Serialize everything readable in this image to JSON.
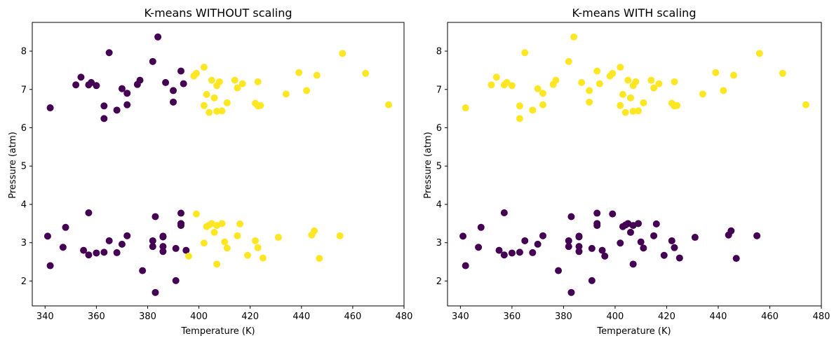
{
  "colors": {
    "cluster_0": "#440154",
    "cluster_1": "#fde725",
    "frame": "#000000"
  },
  "chart_data": [
    {
      "type": "scatter",
      "title": "K-means WITHOUT scaling",
      "xlabel": "Temperature (K)",
      "ylabel": "Pressure (atm)",
      "xlim": [
        335,
        480
      ],
      "ylim": [
        1.35,
        8.75
      ],
      "xticks": [
        340,
        360,
        380,
        400,
        420,
        440,
        460,
        480
      ],
      "yticks": [
        2,
        3,
        4,
        5,
        6,
        7,
        8
      ],
      "grid": false,
      "series": [
        {
          "color": "#440154",
          "points": [
            [
              342,
              6.52
            ],
            [
              352,
              7.12
            ],
            [
              354,
              7.32
            ],
            [
              357,
              7.12
            ],
            [
              358,
              7.18
            ],
            [
              360,
              7.1
            ],
            [
              363,
              6.57
            ],
            [
              363,
              6.24
            ],
            [
              365,
              7.96
            ],
            [
              368,
              6.46
            ],
            [
              370,
              7.02
            ],
            [
              372,
              6.6
            ],
            [
              372,
              6.9
            ],
            [
              376,
              7.13
            ],
            [
              377,
              7.24
            ],
            [
              382,
              7.73
            ],
            [
              384,
              8.37
            ],
            [
              387,
              7.18
            ],
            [
              390,
              6.67
            ],
            [
              390,
              6.97
            ],
            [
              393,
              7.48
            ],
            [
              394,
              7.15
            ],
            [
              341,
              3.17
            ],
            [
              342,
              2.4
            ],
            [
              347,
              2.88
            ],
            [
              348,
              3.4
            ],
            [
              355,
              2.8
            ],
            [
              357,
              3.78
            ],
            [
              357,
              2.68
            ],
            [
              360,
              2.73
            ],
            [
              363,
              2.75
            ],
            [
              365,
              3.05
            ],
            [
              368,
              2.74
            ],
            [
              370,
              2.96
            ],
            [
              372,
              3.18
            ],
            [
              378,
              2.27
            ],
            [
              382,
              3.05
            ],
            [
              382,
              2.9
            ],
            [
              383,
              3.68
            ],
            [
              383,
              1.7
            ],
            [
              386,
              3.15
            ],
            [
              386,
              3.17
            ],
            [
              386,
              2.9
            ],
            [
              386,
              2.77
            ],
            [
              391,
              2.85
            ],
            [
              391,
              2.01
            ],
            [
              393,
              3.5
            ],
            [
              393,
              3.45
            ],
            [
              393,
              3.77
            ],
            [
              395,
              2.8
            ]
          ]
        },
        {
          "color": "#fde725",
          "points": [
            [
              398,
              7.35
            ],
            [
              399,
              7.42
            ],
            [
              402,
              7.58
            ],
            [
              402,
              6.58
            ],
            [
              403,
              6.87
            ],
            [
              404,
              6.4
            ],
            [
              405,
              7.24
            ],
            [
              406,
              6.78
            ],
            [
              407,
              6.43
            ],
            [
              407,
              7.1
            ],
            [
              408,
              7.2
            ],
            [
              409,
              6.44
            ],
            [
              411,
              6.65
            ],
            [
              414,
              7.24
            ],
            [
              415,
              7.04
            ],
            [
              417,
              7.15
            ],
            [
              422,
              6.64
            ],
            [
              423,
              7.2
            ],
            [
              423,
              6.57
            ],
            [
              424,
              6.58
            ],
            [
              434,
              6.88
            ],
            [
              439,
              7.44
            ],
            [
              442,
              6.97
            ],
            [
              446,
              7.37
            ],
            [
              456,
              7.94
            ],
            [
              465,
              7.42
            ],
            [
              474,
              6.6
            ],
            [
              396,
              2.65
            ],
            [
              399,
              3.75
            ],
            [
              402,
              2.99
            ],
            [
              403,
              3.42
            ],
            [
              404,
              3.46
            ],
            [
              405,
              3.5
            ],
            [
              406,
              3.27
            ],
            [
              407,
              3.45
            ],
            [
              407,
              2.44
            ],
            [
              409,
              3.5
            ],
            [
              410,
              3.02
            ],
            [
              411,
              2.86
            ],
            [
              415,
              3.18
            ],
            [
              416,
              3.49
            ],
            [
              419,
              2.67
            ],
            [
              422,
              3.05
            ],
            [
              423,
              2.87
            ],
            [
              425,
              2.6
            ],
            [
              431,
              3.14
            ],
            [
              444,
              3.2
            ],
            [
              445,
              3.31
            ],
            [
              447,
              2.59
            ],
            [
              455,
              3.18
            ]
          ]
        }
      ]
    },
    {
      "type": "scatter",
      "title": "K-means WITH scaling",
      "xlabel": "Temperature (K)",
      "ylabel": "Pressure (atm)",
      "xlim": [
        335,
        480
      ],
      "ylim": [
        1.35,
        8.75
      ],
      "xticks": [
        340,
        360,
        380,
        400,
        420,
        440,
        460,
        480
      ],
      "yticks": [
        2,
        3,
        4,
        5,
        6,
        7,
        8
      ],
      "grid": false,
      "series": [
        {
          "color": "#fde725",
          "points": [
            [
              342,
              6.52
            ],
            [
              352,
              7.12
            ],
            [
              354,
              7.32
            ],
            [
              357,
              7.12
            ],
            [
              358,
              7.18
            ],
            [
              360,
              7.1
            ],
            [
              363,
              6.57
            ],
            [
              363,
              6.24
            ],
            [
              365,
              7.96
            ],
            [
              368,
              6.46
            ],
            [
              370,
              7.02
            ],
            [
              372,
              6.6
            ],
            [
              372,
              6.9
            ],
            [
              376,
              7.13
            ],
            [
              377,
              7.24
            ],
            [
              382,
              7.73
            ],
            [
              384,
              8.37
            ],
            [
              387,
              7.18
            ],
            [
              390,
              6.67
            ],
            [
              390,
              6.97
            ],
            [
              393,
              7.48
            ],
            [
              394,
              7.15
            ],
            [
              398,
              7.35
            ],
            [
              399,
              7.42
            ],
            [
              402,
              7.58
            ],
            [
              402,
              6.58
            ],
            [
              403,
              6.87
            ],
            [
              404,
              6.4
            ],
            [
              405,
              7.24
            ],
            [
              406,
              6.78
            ],
            [
              407,
              6.43
            ],
            [
              407,
              7.1
            ],
            [
              408,
              7.2
            ],
            [
              409,
              6.44
            ],
            [
              411,
              6.65
            ],
            [
              414,
              7.24
            ],
            [
              415,
              7.04
            ],
            [
              417,
              7.15
            ],
            [
              422,
              6.64
            ],
            [
              423,
              7.2
            ],
            [
              423,
              6.57
            ],
            [
              424,
              6.58
            ],
            [
              434,
              6.88
            ],
            [
              439,
              7.44
            ],
            [
              442,
              6.97
            ],
            [
              446,
              7.37
            ],
            [
              456,
              7.94
            ],
            [
              465,
              7.42
            ],
            [
              474,
              6.6
            ]
          ]
        },
        {
          "color": "#440154",
          "points": [
            [
              341,
              3.17
            ],
            [
              342,
              2.4
            ],
            [
              347,
              2.88
            ],
            [
              348,
              3.4
            ],
            [
              355,
              2.8
            ],
            [
              357,
              3.78
            ],
            [
              357,
              2.68
            ],
            [
              360,
              2.73
            ],
            [
              363,
              2.75
            ],
            [
              365,
              3.05
            ],
            [
              368,
              2.74
            ],
            [
              370,
              2.96
            ],
            [
              372,
              3.18
            ],
            [
              378,
              2.27
            ],
            [
              382,
              3.05
            ],
            [
              382,
              2.9
            ],
            [
              383,
              3.68
            ],
            [
              383,
              1.7
            ],
            [
              386,
              3.15
            ],
            [
              386,
              3.17
            ],
            [
              386,
              2.9
            ],
            [
              386,
              2.77
            ],
            [
              391,
              2.85
            ],
            [
              391,
              2.01
            ],
            [
              393,
              3.5
            ],
            [
              393,
              3.45
            ],
            [
              393,
              3.77
            ],
            [
              395,
              2.8
            ],
            [
              396,
              2.65
            ],
            [
              399,
              3.75
            ],
            [
              402,
              2.99
            ],
            [
              403,
              3.42
            ],
            [
              404,
              3.46
            ],
            [
              405,
              3.5
            ],
            [
              406,
              3.27
            ],
            [
              407,
              3.45
            ],
            [
              407,
              2.44
            ],
            [
              409,
              3.5
            ],
            [
              410,
              3.02
            ],
            [
              411,
              2.86
            ],
            [
              415,
              3.18
            ],
            [
              416,
              3.49
            ],
            [
              419,
              2.67
            ],
            [
              422,
              3.05
            ],
            [
              423,
              2.87
            ],
            [
              425,
              2.6
            ],
            [
              431,
              3.14
            ],
            [
              444,
              3.2
            ],
            [
              445,
              3.31
            ],
            [
              447,
              2.59
            ],
            [
              455,
              3.18
            ]
          ]
        }
      ]
    }
  ]
}
